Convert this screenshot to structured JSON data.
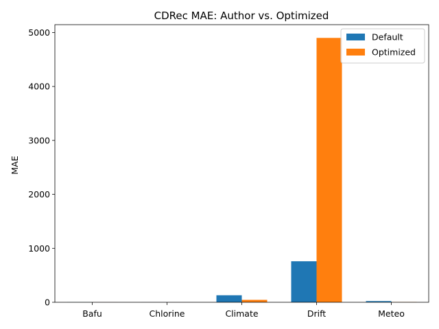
{
  "chart_data": {
    "type": "bar",
    "title": "CDRec MAE: Author vs. Optimized",
    "xlabel": "",
    "ylabel": "MAE",
    "categories": [
      "Bafu",
      "Chlorine",
      "Climate",
      "Drift",
      "Meteo"
    ],
    "series": [
      {
        "name": "Default",
        "color": "#1f77b4",
        "values": [
          2,
          1,
          130,
          760,
          22
        ]
      },
      {
        "name": "Optimized",
        "color": "#ff7f0e",
        "values": [
          1,
          0.5,
          45,
          4900,
          5
        ]
      }
    ],
    "ylim": [
      0,
      5145
    ],
    "yticks": [
      0,
      1000,
      2000,
      3000,
      4000,
      5000
    ],
    "grid": false,
    "legend_position": "top-right"
  }
}
